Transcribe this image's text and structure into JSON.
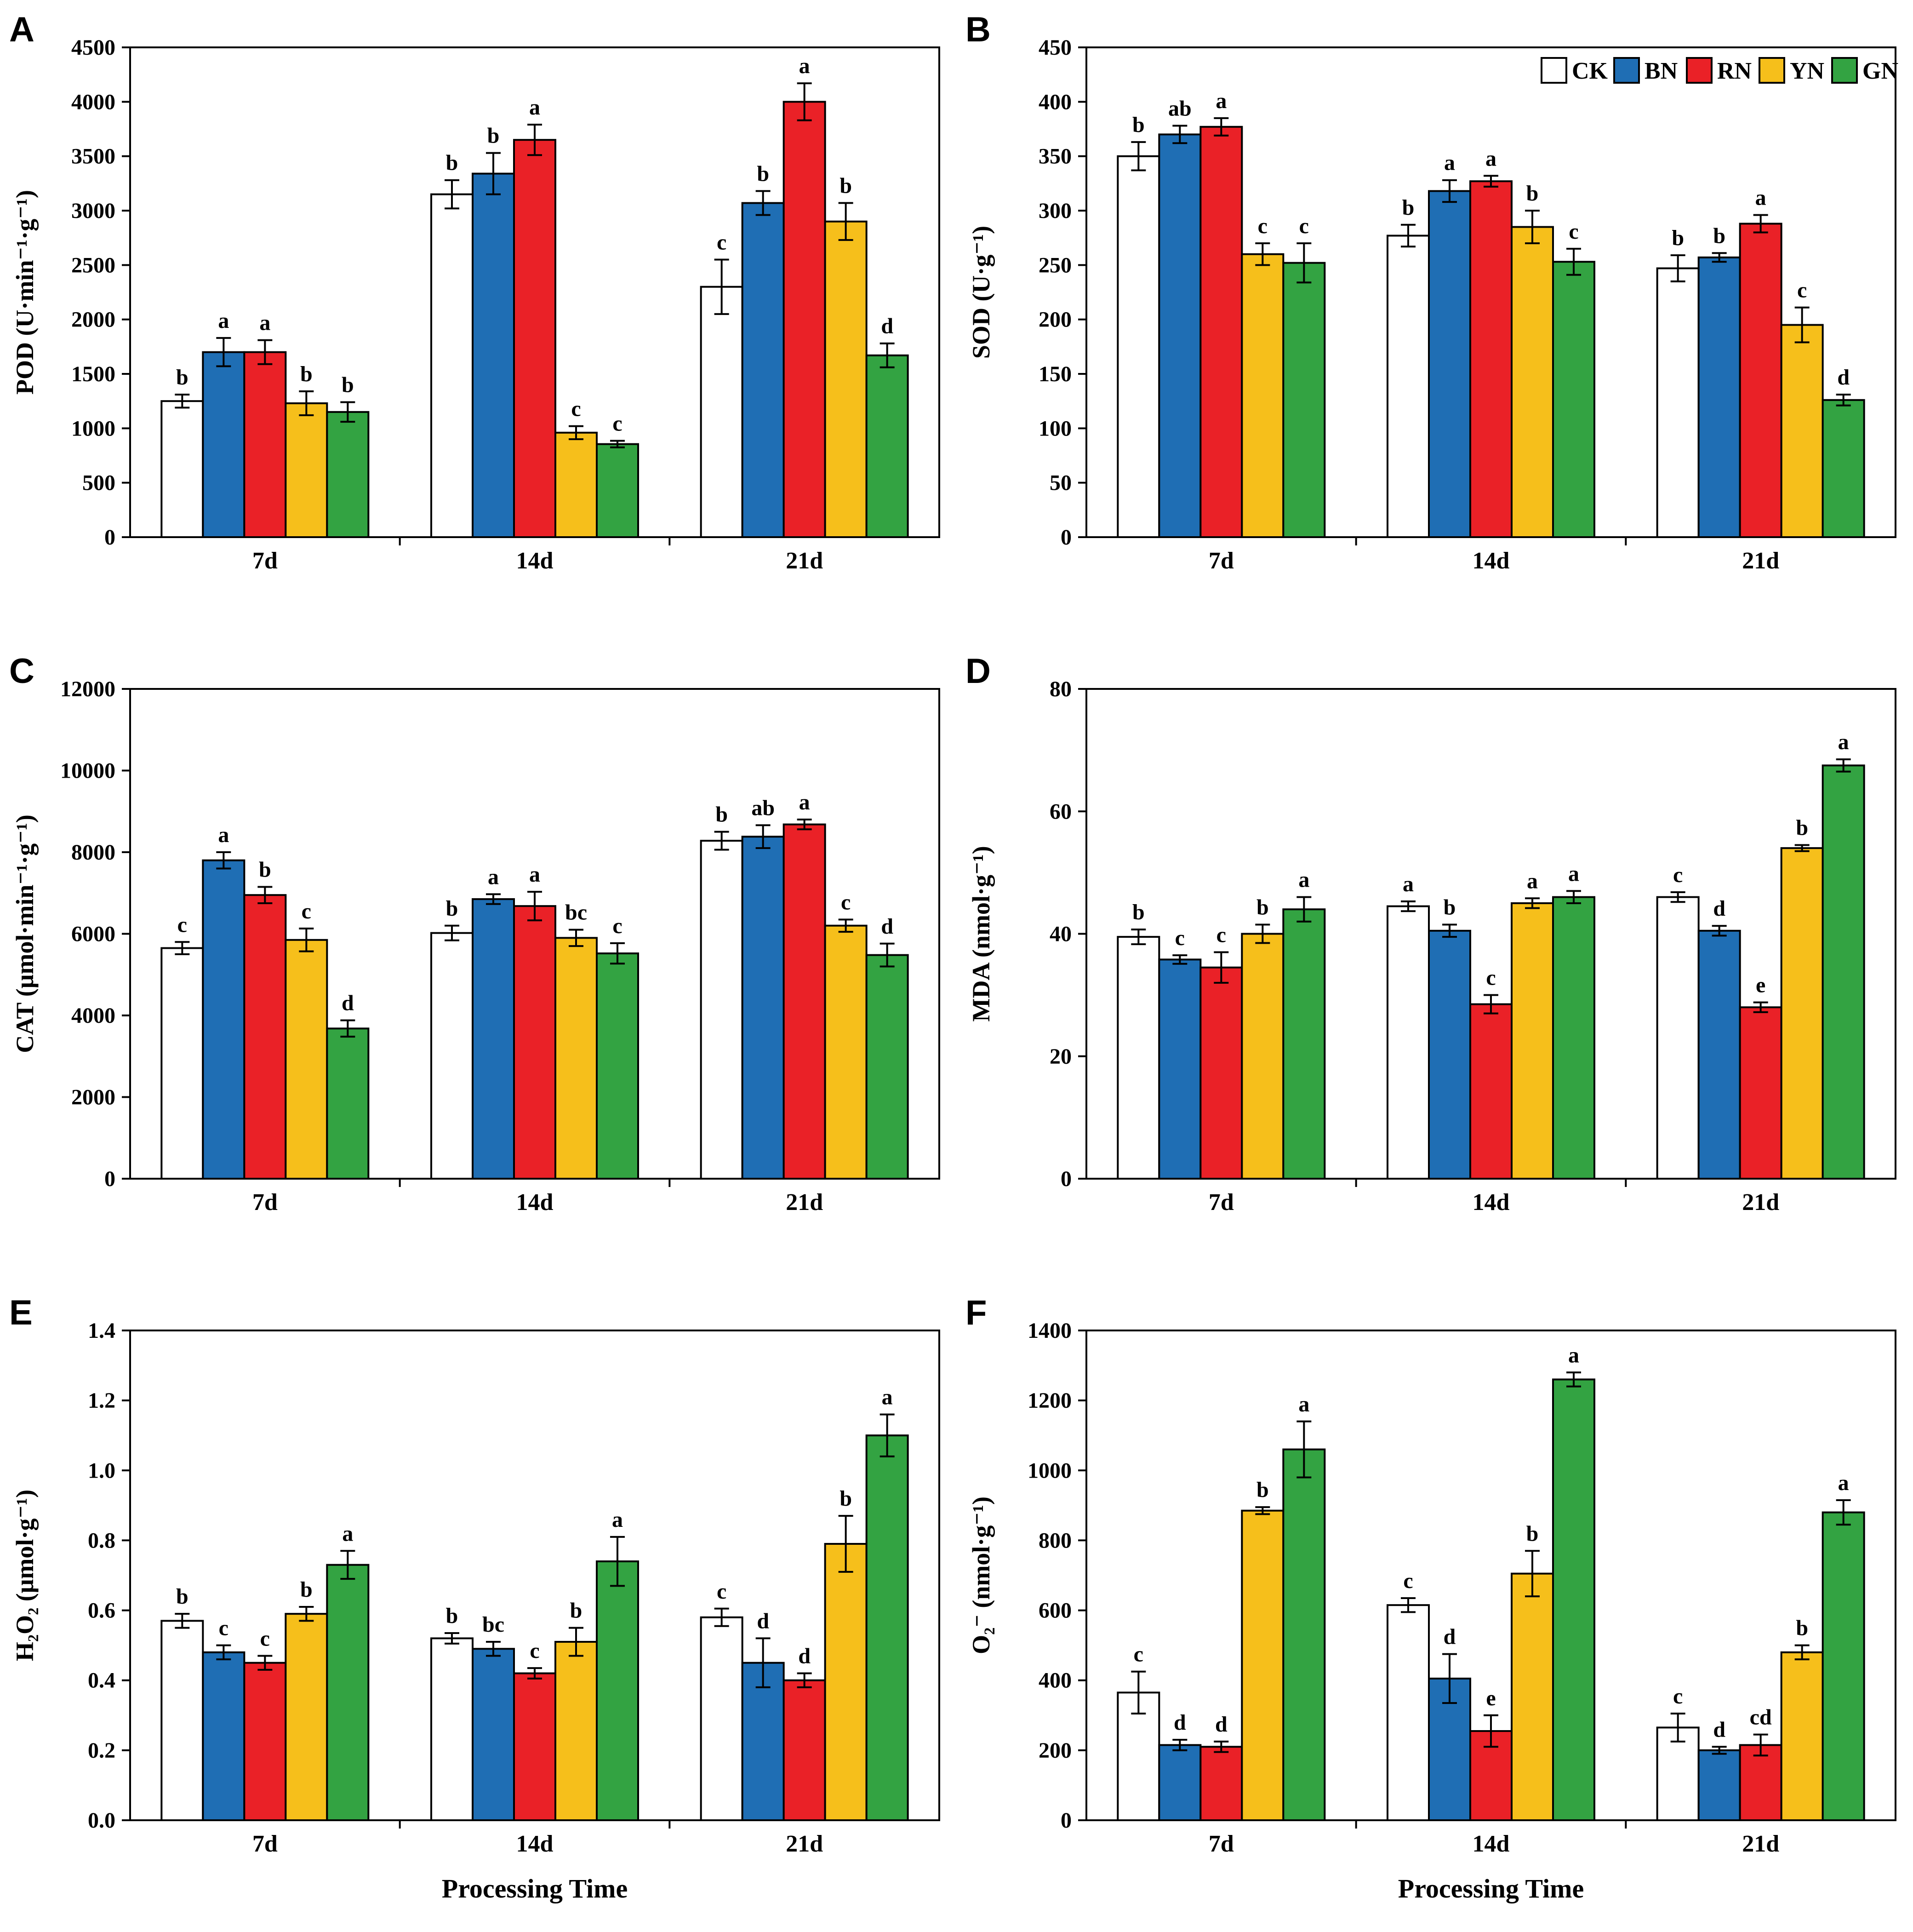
{
  "figure": {
    "background": "#ffffff",
    "axis_color": "#000000",
    "series_order": [
      "CK",
      "BN",
      "RN",
      "YN",
      "GN"
    ],
    "series_colors": {
      "CK": "#ffffff",
      "BN": "#1f6eb4",
      "RN": "#ea2127",
      "YN": "#f6bf1b",
      "GN": "#33a342"
    },
    "x_axis_title": "Processing Time"
  },
  "chart_data": [
    {
      "type": "bar",
      "panel": "A",
      "ylabel": "POD (U·min⁻¹·g⁻¹)",
      "xlabel": "",
      "legend": false,
      "ylim": [
        0,
        4500
      ],
      "ytick_step": 500,
      "ytick_decimals": 0,
      "categories": [
        "7d",
        "14d",
        "21d"
      ],
      "series": [
        {
          "name": "CK",
          "values": [
            1250,
            3150,
            2300
          ],
          "errors": [
            60,
            130,
            250
          ],
          "letters": [
            "b",
            "b",
            "c"
          ]
        },
        {
          "name": "BN",
          "values": [
            1700,
            3340,
            3070
          ],
          "errors": [
            130,
            190,
            110
          ],
          "letters": [
            "a",
            "b",
            "b"
          ]
        },
        {
          "name": "RN",
          "values": [
            1700,
            3650,
            4000
          ],
          "errors": [
            110,
            140,
            170
          ],
          "letters": [
            "a",
            "a",
            "a"
          ]
        },
        {
          "name": "YN",
          "values": [
            1230,
            960,
            2900
          ],
          "errors": [
            110,
            60,
            170
          ],
          "letters": [
            "b",
            "c",
            "b"
          ]
        },
        {
          "name": "GN",
          "values": [
            1150,
            855,
            1670
          ],
          "errors": [
            90,
            30,
            110
          ],
          "letters": [
            "b",
            "c",
            "d"
          ]
        }
      ]
    },
    {
      "type": "bar",
      "panel": "B",
      "ylabel": "SOD (U·g⁻¹)",
      "xlabel": "",
      "legend": true,
      "ylim": [
        0,
        450
      ],
      "ytick_step": 50,
      "ytick_decimals": 0,
      "categories": [
        "7d",
        "14d",
        "21d"
      ],
      "series": [
        {
          "name": "CK",
          "values": [
            350,
            277,
            247
          ],
          "errors": [
            13,
            10,
            12
          ],
          "letters": [
            "b",
            "b",
            "b"
          ]
        },
        {
          "name": "BN",
          "values": [
            370,
            318,
            257
          ],
          "errors": [
            8,
            10,
            4
          ],
          "letters": [
            "ab",
            "a",
            "b"
          ]
        },
        {
          "name": "RN",
          "values": [
            377,
            327,
            288
          ],
          "errors": [
            8,
            5,
            8
          ],
          "letters": [
            "a",
            "a",
            "a"
          ]
        },
        {
          "name": "YN",
          "values": [
            260,
            285,
            195
          ],
          "errors": [
            10,
            15,
            16
          ],
          "letters": [
            "c",
            "b",
            "c"
          ]
        },
        {
          "name": "GN",
          "values": [
            252,
            253,
            126
          ],
          "errors": [
            18,
            12,
            5
          ],
          "letters": [
            "c",
            "c",
            "d"
          ]
        }
      ]
    },
    {
      "type": "bar",
      "panel": "C",
      "ylabel": "CAT (μmol·min⁻¹·g⁻¹)",
      "xlabel": "",
      "legend": false,
      "ylim": [
        0,
        12000
      ],
      "ytick_step": 2000,
      "ytick_decimals": 0,
      "categories": [
        "7d",
        "14d",
        "21d"
      ],
      "series": [
        {
          "name": "CK",
          "values": [
            5650,
            6020,
            8280
          ],
          "errors": [
            150,
            180,
            220
          ],
          "letters": [
            "c",
            "b",
            "b"
          ]
        },
        {
          "name": "BN",
          "values": [
            7800,
            6850,
            8380
          ],
          "errors": [
            200,
            120,
            280
          ],
          "letters": [
            "a",
            "a",
            "ab"
          ]
        },
        {
          "name": "RN",
          "values": [
            6950,
            6680,
            8680
          ],
          "errors": [
            200,
            350,
            120
          ],
          "letters": [
            "b",
            "a",
            "a"
          ]
        },
        {
          "name": "YN",
          "values": [
            5850,
            5900,
            6200
          ],
          "errors": [
            280,
            200,
            150
          ],
          "letters": [
            "c",
            "bc",
            "c"
          ]
        },
        {
          "name": "GN",
          "values": [
            3680,
            5520,
            5480
          ],
          "errors": [
            200,
            250,
            280
          ],
          "letters": [
            "d",
            "c",
            "d"
          ]
        }
      ]
    },
    {
      "type": "bar",
      "panel": "D",
      "ylabel": "MDA (nmol·g⁻¹)",
      "xlabel": "",
      "legend": false,
      "ylim": [
        0,
        80
      ],
      "ytick_step": 20,
      "ytick_decimals": 0,
      "categories": [
        "7d",
        "14d",
        "21d"
      ],
      "series": [
        {
          "name": "CK",
          "values": [
            39.5,
            44.5,
            46
          ],
          "errors": [
            1.2,
            0.8,
            0.8
          ],
          "letters": [
            "b",
            "a",
            "c"
          ]
        },
        {
          "name": "BN",
          "values": [
            35.8,
            40.5,
            40.5
          ],
          "errors": [
            0.7,
            1.0,
            0.8
          ],
          "letters": [
            "c",
            "b",
            "d"
          ]
        },
        {
          "name": "RN",
          "values": [
            34.5,
            28.5,
            28
          ],
          "errors": [
            2.5,
            1.5,
            0.8
          ],
          "letters": [
            "c",
            "c",
            "e"
          ]
        },
        {
          "name": "YN",
          "values": [
            40,
            45,
            54
          ],
          "errors": [
            1.5,
            0.8,
            0.5
          ],
          "letters": [
            "b",
            "a",
            "b"
          ]
        },
        {
          "name": "GN",
          "values": [
            44,
            46,
            67.5
          ],
          "errors": [
            2.0,
            1.0,
            1.0
          ],
          "letters": [
            "a",
            "a",
            "a"
          ]
        }
      ]
    },
    {
      "type": "bar",
      "panel": "E",
      "ylabel": "H₂O₂ (μmol·g⁻¹)",
      "xlabel": "Processing Time",
      "legend": false,
      "ylim": [
        0,
        1.4
      ],
      "ytick_step": 0.2,
      "ytick_decimals": 1,
      "categories": [
        "7d",
        "14d",
        "21d"
      ],
      "series": [
        {
          "name": "CK",
          "values": [
            0.57,
            0.52,
            0.58
          ],
          "errors": [
            0.02,
            0.015,
            0.025
          ],
          "letters": [
            "b",
            "b",
            "c"
          ]
        },
        {
          "name": "BN",
          "values": [
            0.48,
            0.49,
            0.45
          ],
          "errors": [
            0.02,
            0.02,
            0.07
          ],
          "letters": [
            "c",
            "bc",
            "d"
          ]
        },
        {
          "name": "RN",
          "values": [
            0.45,
            0.42,
            0.4
          ],
          "errors": [
            0.02,
            0.015,
            0.02
          ],
          "letters": [
            "c",
            "c",
            "d"
          ]
        },
        {
          "name": "YN",
          "values": [
            0.59,
            0.51,
            0.79
          ],
          "errors": [
            0.02,
            0.04,
            0.08
          ],
          "letters": [
            "b",
            "b",
            "b"
          ]
        },
        {
          "name": "GN",
          "values": [
            0.73,
            0.74,
            1.1
          ],
          "errors": [
            0.04,
            0.07,
            0.06
          ],
          "letters": [
            "a",
            "a",
            "a"
          ]
        }
      ]
    },
    {
      "type": "bar",
      "panel": "F",
      "ylabel": "O₂⁻ (nmol·g⁻¹)",
      "xlabel": "Processing Time",
      "legend": false,
      "ylim": [
        0,
        1400
      ],
      "ytick_step": 200,
      "ytick_decimals": 0,
      "categories": [
        "7d",
        "14d",
        "21d"
      ],
      "series": [
        {
          "name": "CK",
          "values": [
            365,
            615,
            265
          ],
          "errors": [
            60,
            20,
            40
          ],
          "letters": [
            "c",
            "c",
            "c"
          ]
        },
        {
          "name": "BN",
          "values": [
            215,
            405,
            200
          ],
          "errors": [
            15,
            70,
            10
          ],
          "letters": [
            "d",
            "d",
            "d"
          ]
        },
        {
          "name": "RN",
          "values": [
            210,
            255,
            215
          ],
          "errors": [
            15,
            45,
            30
          ],
          "letters": [
            "d",
            "e",
            "cd"
          ]
        },
        {
          "name": "YN",
          "values": [
            885,
            705,
            480
          ],
          "errors": [
            10,
            65,
            20
          ],
          "letters": [
            "b",
            "b",
            "b"
          ]
        },
        {
          "name": "GN",
          "values": [
            1060,
            1260,
            880
          ],
          "errors": [
            80,
            20,
            35
          ],
          "letters": [
            "a",
            "a",
            "a"
          ]
        }
      ]
    }
  ]
}
